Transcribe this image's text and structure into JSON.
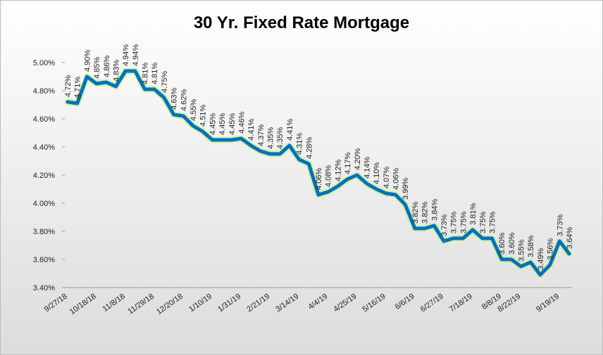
{
  "chart_data": {
    "type": "line",
    "title": "30 Yr. Fixed Rate Mortgage",
    "categories": [
      "9/27/18",
      null,
      null,
      "10/18/18",
      null,
      null,
      "11/8/18",
      null,
      null,
      "11/29/18",
      null,
      null,
      "12/20/18",
      null,
      null,
      "1/10/19",
      null,
      null,
      "1/31/19",
      null,
      null,
      "2/21/19",
      null,
      null,
      "3/14/19",
      null,
      null,
      "4/4/19",
      null,
      null,
      "4/25/19",
      null,
      null,
      "5/16/19",
      null,
      null,
      "6/6/19",
      null,
      null,
      "6/27/19",
      null,
      null,
      "7/18/19",
      null,
      null,
      "8/8/19",
      null,
      "8/22/19",
      null,
      null,
      null,
      "9/19/19",
      null
    ],
    "series": [
      {
        "name": "30 Yr. Fixed Rate Mortgage",
        "color": "#0070c0",
        "values": [
          4.72,
          4.71,
          4.9,
          4.85,
          4.86,
          4.83,
          4.94,
          4.94,
          4.81,
          4.81,
          4.75,
          4.63,
          4.62,
          4.55,
          4.51,
          4.45,
          4.45,
          4.45,
          4.46,
          4.41,
          4.37,
          4.35,
          4.35,
          4.41,
          4.31,
          4.28,
          4.06,
          4.08,
          4.12,
          4.17,
          4.2,
          4.14,
          4.1,
          4.07,
          4.06,
          3.99,
          3.82,
          3.82,
          3.84,
          3.73,
          3.75,
          3.75,
          3.81,
          3.75,
          3.75,
          3.6,
          3.6,
          3.55,
          3.58,
          3.49,
          3.56,
          3.73,
          3.64
        ],
        "value_labels": [
          "4.72%",
          "4.71%",
          "4.90%",
          "4.85%",
          "4.86%",
          "4.83%",
          "4.94%",
          "4.94%",
          "4.81%",
          "4.81%",
          "4.75%",
          "4.63%",
          "4.62%",
          "4.55%",
          "4.51%",
          "4.45%",
          "4.45%",
          "4.45%",
          "4.46%",
          "4.41%",
          "4.37%",
          "4.35%",
          "4.35%",
          "4.41%",
          "4.31%",
          "4.28%",
          "4.06%",
          "4.08%",
          "4.12%",
          "4.17%",
          "4.20%",
          "4.14%",
          "4.10%",
          "4.07%",
          "4.06%",
          "3.99%",
          "3.82%",
          "3.82%",
          "3.84%",
          "3.73%",
          "3.75%",
          "3.75%",
          "3.81%",
          "3.75%",
          "3.75%",
          "3.60%",
          "3.60%",
          "3.55%",
          "3.58%",
          "3.49%",
          "3.56%",
          "3.73%",
          "3.64%"
        ]
      }
    ],
    "ylim": [
      3.4,
      5.0
    ],
    "yticks": [
      {
        "value": 3.4,
        "label": "3.40%"
      },
      {
        "value": 3.6,
        "label": "3.60%"
      },
      {
        "value": 3.8,
        "label": "3.80%"
      },
      {
        "value": 4.0,
        "label": "4.00%"
      },
      {
        "value": 4.2,
        "label": "4.20%"
      },
      {
        "value": 4.4,
        "label": "4.40%"
      },
      {
        "value": 4.6,
        "label": "4.60%"
      },
      {
        "value": 4.8,
        "label": "4.80%"
      },
      {
        "value": 5.0,
        "label": "5.00%"
      }
    ],
    "grid": false
  }
}
